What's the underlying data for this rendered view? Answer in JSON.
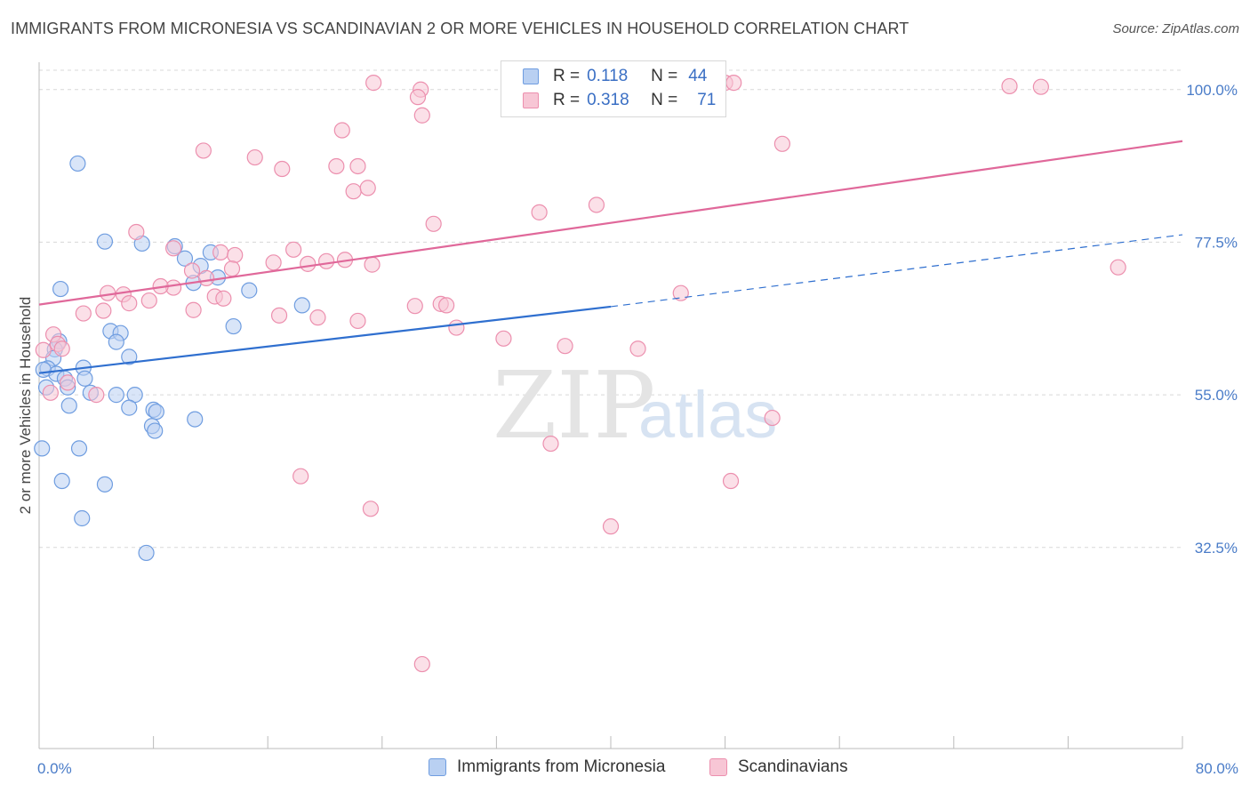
{
  "title": "IMMIGRANTS FROM MICRONESIA VS SCANDINAVIAN 2 OR MORE VEHICLES IN HOUSEHOLD CORRELATION CHART",
  "source": "Source: ZipAtlas.com",
  "watermark": {
    "zip": "ZIP",
    "atlas": "atlas"
  },
  "colors": {
    "blue_fill": "#b9d0f2",
    "blue_stroke": "#6f9de0",
    "blue_line": "#2f6fcf",
    "pink_fill": "#f7c6d5",
    "pink_stroke": "#ec8fae",
    "pink_line": "#e0689a",
    "axis_text": "#4a7cc8",
    "grid": "#d8d8d8"
  },
  "legend_top": {
    "rows": [
      {
        "r_label": "R =",
        "r_value": "0.118",
        "n_label": "N =",
        "n_value": "44"
      },
      {
        "r_label": "R =",
        "r_value": "0.318",
        "n_label": "N =",
        "n_value": "71"
      }
    ]
  },
  "legend_bottom": [
    "Immigrants from Micronesia",
    "Scandinavians"
  ],
  "chart_data": {
    "type": "scatter",
    "title": "IMMIGRANTS FROM MICRONESIA VS SCANDINAVIAN 2 OR MORE VEHICLES IN HOUSEHOLD CORRELATION CHART",
    "xlabel": "",
    "ylabel": "2 or more Vehicles in Household",
    "xlim": [
      0,
      80
    ],
    "ylim": [
      10,
      102
    ],
    "x_tick_labels": [
      "0.0%",
      "80.0%"
    ],
    "y_ticks": [
      32.5,
      55.0,
      77.5,
      100.0
    ],
    "y_tick_labels": [
      "32.5%",
      "55.0%",
      "77.5%",
      "100.0%"
    ],
    "grid": true,
    "legend_position": "top-center",
    "series": [
      {
        "name": "Immigrants from Micronesia",
        "color": "#6f9de0",
        "R": 0.118,
        "N": 44,
        "trend": {
          "x0": 0,
          "y0": 58.2,
          "x1": 40,
          "y1": 68.0,
          "dashed_to_x": 80,
          "dashed_to_y": 78.6
        },
        "points": [
          [
            2.7,
            89.1
          ],
          [
            4.6,
            77.6
          ],
          [
            7.2,
            77.3
          ],
          [
            9.5,
            76.9
          ],
          [
            10.2,
            75.1
          ],
          [
            11.3,
            74.0
          ],
          [
            12.0,
            76.0
          ],
          [
            10.8,
            71.5
          ],
          [
            12.5,
            72.3
          ],
          [
            1.5,
            70.6
          ],
          [
            14.7,
            70.4
          ],
          [
            18.4,
            68.2
          ],
          [
            13.6,
            65.1
          ],
          [
            5.0,
            64.4
          ],
          [
            5.7,
            64.1
          ],
          [
            5.4,
            62.8
          ],
          [
            1.4,
            62.9
          ],
          [
            1.1,
            61.7
          ],
          [
            6.3,
            60.6
          ],
          [
            1.0,
            60.4
          ],
          [
            3.1,
            59.0
          ],
          [
            0.6,
            58.9
          ],
          [
            1.2,
            58.1
          ],
          [
            3.2,
            57.4
          ],
          [
            0.3,
            58.7
          ],
          [
            1.8,
            57.4
          ],
          [
            2.0,
            56.1
          ],
          [
            0.5,
            56.1
          ],
          [
            3.6,
            55.3
          ],
          [
            5.4,
            55.0
          ],
          [
            6.7,
            55.0
          ],
          [
            6.3,
            53.1
          ],
          [
            2.1,
            53.4
          ],
          [
            8.0,
            52.8
          ],
          [
            8.2,
            52.5
          ],
          [
            7.9,
            50.4
          ],
          [
            8.1,
            49.7
          ],
          [
            0.2,
            47.1
          ],
          [
            2.8,
            47.1
          ],
          [
            1.6,
            42.3
          ],
          [
            10.9,
            51.4
          ],
          [
            4.6,
            41.8
          ],
          [
            3.0,
            36.8
          ],
          [
            7.5,
            31.7
          ]
        ]
      },
      {
        "name": "Scandinavians",
        "color": "#ec8fae",
        "R": 0.318,
        "N": 71,
        "trend": {
          "x0": 0,
          "y0": 68.3,
          "x1": 80,
          "y1": 92.4
        },
        "points": [
          [
            23.4,
            101.0
          ],
          [
            26.7,
            100.0
          ],
          [
            37.4,
            101.0
          ],
          [
            48.0,
            101.0
          ],
          [
            48.6,
            101.0
          ],
          [
            67.9,
            100.5
          ],
          [
            70.1,
            100.4
          ],
          [
            26.5,
            98.9
          ],
          [
            26.8,
            96.2
          ],
          [
            21.2,
            94.0
          ],
          [
            52.0,
            92.0
          ],
          [
            11.5,
            91.0
          ],
          [
            15.1,
            90.0
          ],
          [
            20.8,
            88.7
          ],
          [
            17.0,
            88.3
          ],
          [
            22.3,
            88.7
          ],
          [
            22.0,
            85.0
          ],
          [
            23.0,
            85.5
          ],
          [
            39.0,
            83.0
          ],
          [
            35.0,
            81.9
          ],
          [
            27.6,
            80.2
          ],
          [
            6.8,
            79.0
          ],
          [
            9.4,
            76.6
          ],
          [
            12.7,
            76.0
          ],
          [
            13.7,
            75.6
          ],
          [
            17.8,
            76.4
          ],
          [
            16.4,
            74.5
          ],
          [
            13.5,
            73.6
          ],
          [
            18.8,
            74.3
          ],
          [
            20.1,
            74.7
          ],
          [
            21.4,
            74.9
          ],
          [
            23.3,
            74.2
          ],
          [
            10.7,
            73.3
          ],
          [
            11.7,
            72.2
          ],
          [
            9.4,
            70.8
          ],
          [
            8.5,
            71.0
          ],
          [
            12.3,
            69.5
          ],
          [
            12.9,
            69.2
          ],
          [
            10.8,
            67.5
          ],
          [
            4.8,
            70.0
          ],
          [
            5.9,
            69.8
          ],
          [
            7.7,
            68.9
          ],
          [
            6.3,
            68.5
          ],
          [
            4.5,
            67.4
          ],
          [
            3.1,
            67.0
          ],
          [
            16.8,
            66.7
          ],
          [
            19.5,
            66.4
          ],
          [
            22.3,
            65.9
          ],
          [
            26.3,
            68.1
          ],
          [
            28.1,
            68.4
          ],
          [
            28.5,
            68.2
          ],
          [
            29.2,
            64.9
          ],
          [
            1.0,
            63.9
          ],
          [
            1.3,
            62.5
          ],
          [
            1.6,
            61.8
          ],
          [
            0.3,
            61.6
          ],
          [
            32.5,
            63.3
          ],
          [
            36.8,
            62.2
          ],
          [
            41.9,
            61.8
          ],
          [
            51.3,
            51.6
          ],
          [
            35.8,
            47.8
          ],
          [
            48.4,
            42.3
          ],
          [
            23.2,
            38.2
          ],
          [
            40.0,
            35.6
          ],
          [
            2.0,
            56.8
          ],
          [
            0.8,
            55.3
          ],
          [
            4.0,
            55.0
          ],
          [
            26.8,
            15.3
          ],
          [
            75.5,
            73.8
          ],
          [
            44.9,
            70.0
          ],
          [
            18.3,
            43.0
          ]
        ]
      }
    ]
  }
}
